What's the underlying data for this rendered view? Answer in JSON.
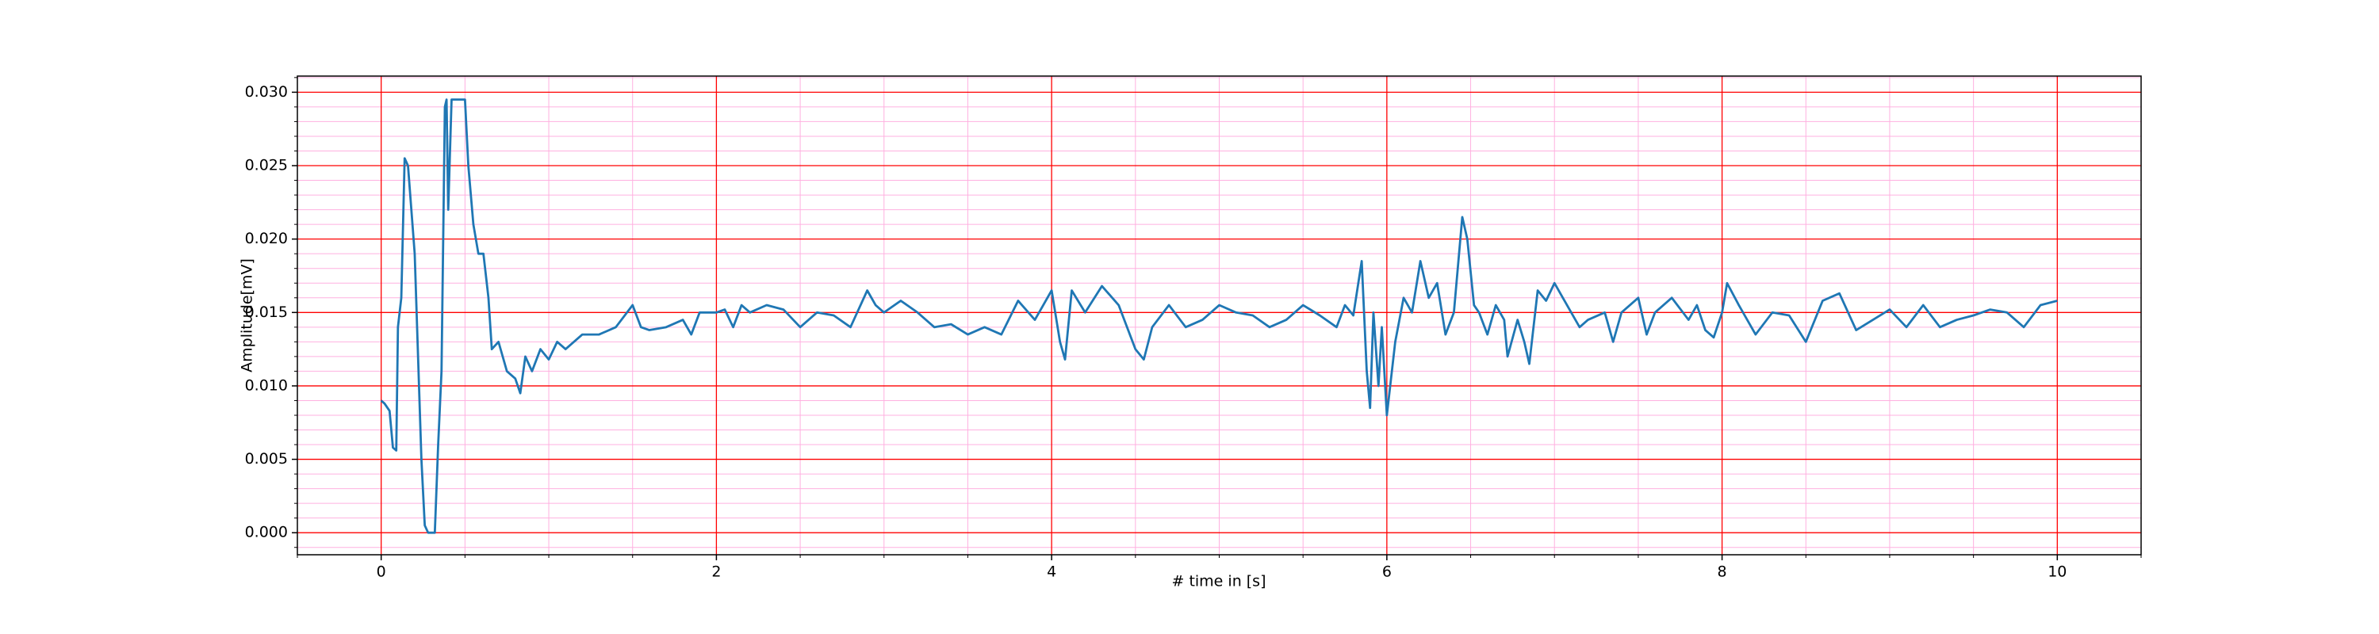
{
  "chart_data": {
    "type": "line",
    "xlabel": "# time in [s]",
    "ylabel": "Amplitude[mV]",
    "color": "#1f77b4",
    "x": [
      0,
      0.02,
      0.05,
      0.07,
      0.09,
      0.1,
      0.12,
      0.14,
      0.16,
      0.18,
      0.2,
      0.22,
      0.24,
      0.26,
      0.28,
      0.32,
      0.34,
      0.36,
      0.38,
      0.39,
      0.4,
      0.42,
      0.5,
      0.52,
      0.55,
      0.58,
      0.61,
      0.64,
      0.66,
      0.7,
      0.75,
      0.8,
      0.83,
      0.86,
      0.9,
      0.95,
      1.0,
      1.05,
      1.1,
      1.2,
      1.3,
      1.4,
      1.5,
      1.55,
      1.6,
      1.7,
      1.8,
      1.85,
      1.9,
      2.0,
      2.05,
      2.1,
      2.15,
      2.2,
      2.3,
      2.4,
      2.5,
      2.6,
      2.7,
      2.8,
      2.9,
      2.95,
      3.0,
      3.1,
      3.2,
      3.3,
      3.4,
      3.5,
      3.6,
      3.7,
      3.8,
      3.9,
      3.95,
      4.0,
      4.05,
      4.08,
      4.12,
      4.2,
      4.3,
      4.4,
      4.5,
      4.55,
      4.6,
      4.7,
      4.8,
      4.9,
      5.0,
      5.1,
      5.2,
      5.3,
      5.4,
      5.5,
      5.6,
      5.7,
      5.75,
      5.8,
      5.85,
      5.88,
      5.9,
      5.92,
      5.95,
      5.97,
      6.0,
      6.02,
      6.05,
      6.1,
      6.15,
      6.2,
      6.25,
      6.3,
      6.35,
      6.4,
      6.45,
      6.48,
      6.52,
      6.55,
      6.6,
      6.65,
      6.7,
      6.72,
      6.78,
      6.82,
      6.85,
      6.9,
      6.95,
      7.0,
      7.05,
      7.1,
      7.15,
      7.2,
      7.3,
      7.35,
      7.4,
      7.5,
      7.55,
      7.6,
      7.7,
      7.8,
      7.85,
      7.9,
      7.95,
      8.0,
      8.03,
      8.1,
      8.2,
      8.3,
      8.4,
      8.5,
      8.6,
      8.7,
      8.8,
      8.9,
      9.0,
      9.1,
      9.2,
      9.3,
      9.4,
      9.5,
      9.6,
      9.7,
      9.8,
      9.9,
      10.0
    ],
    "values": [
      0.009,
      0.0088,
      0.0083,
      0.0058,
      0.0056,
      0.014,
      0.016,
      0.0255,
      0.025,
      0.022,
      0.019,
      0.012,
      0.005,
      0.0005,
      0,
      0,
      0.006,
      0.011,
      0.029,
      0.0295,
      0.022,
      0.0295,
      0.0295,
      0.025,
      0.021,
      0.019,
      0.019,
      0.016,
      0.0125,
      0.013,
      0.011,
      0.0105,
      0.0095,
      0.012,
      0.011,
      0.0125,
      0.0118,
      0.013,
      0.0125,
      0.0135,
      0.0135,
      0.014,
      0.0155,
      0.014,
      0.0138,
      0.014,
      0.0145,
      0.0135,
      0.015,
      0.015,
      0.0152,
      0.014,
      0.0155,
      0.015,
      0.0155,
      0.0152,
      0.014,
      0.015,
      0.0148,
      0.014,
      0.0165,
      0.0155,
      0.015,
      0.0158,
      0.015,
      0.014,
      0.0142,
      0.0135,
      0.014,
      0.0135,
      0.0158,
      0.0145,
      0.0155,
      0.0165,
      0.013,
      0.0118,
      0.0165,
      0.015,
      0.0168,
      0.0155,
      0.0125,
      0.0118,
      0.014,
      0.0155,
      0.014,
      0.0145,
      0.0155,
      0.015,
      0.0148,
      0.014,
      0.0145,
      0.0155,
      0.0148,
      0.014,
      0.0155,
      0.0148,
      0.0185,
      0.011,
      0.0085,
      0.015,
      0.01,
      0.014,
      0.008,
      0.01,
      0.013,
      0.016,
      0.015,
      0.0185,
      0.016,
      0.017,
      0.0135,
      0.015,
      0.0215,
      0.02,
      0.0155,
      0.015,
      0.0135,
      0.0155,
      0.0145,
      0.012,
      0.0145,
      0.013,
      0.0115,
      0.0165,
      0.0158,
      0.017,
      0.016,
      0.015,
      0.014,
      0.0145,
      0.015,
      0.013,
      0.015,
      0.016,
      0.0135,
      0.015,
      0.016,
      0.0145,
      0.0155,
      0.0138,
      0.0133,
      0.015,
      0.017,
      0.0155,
      0.0135,
      0.015,
      0.0148,
      0.013,
      0.0158,
      0.0163,
      0.0138,
      0.0145,
      0.0152,
      0.014,
      0.0155,
      0.014,
      0.0145,
      0.0148,
      0.0152,
      0.015,
      0.014,
      0.0155,
      0.0158
    ],
    "xlim": [
      -0.5,
      10.5
    ],
    "xticks": [
      0,
      2,
      4,
      6,
      8,
      10
    ],
    "ylim": [
      -0.0015,
      0.0311
    ],
    "yticks": [
      {
        "value": 0,
        "label": "0.000"
      },
      {
        "value": 0.005,
        "label": "0.005"
      },
      {
        "value": 0.01,
        "label": "0.010"
      },
      {
        "value": 0.015,
        "label": "0.015"
      },
      {
        "value": 0.02,
        "label": "0.020"
      },
      {
        "value": 0.025,
        "label": "0.025"
      },
      {
        "value": 0.03,
        "label": "0.030"
      }
    ],
    "grid": true,
    "grid_color": "#ff0000",
    "minor_grid_color": "#ffb0e0",
    "xminor": [
      -0.5,
      0.5,
      1,
      1.5,
      2.5,
      3,
      3.5,
      4.5,
      5,
      5.5,
      6.5,
      7,
      7.5,
      8.5,
      9,
      9.5,
      10.5
    ],
    "yminor": [
      -0.001,
      0.001,
      0.002,
      0.003,
      0.004,
      0.006,
      0.007,
      0.008,
      0.009,
      0.011,
      0.012,
      0.013,
      0.014,
      0.016,
      0.017,
      0.018,
      0.019,
      0.021,
      0.022,
      0.023,
      0.024,
      0.026,
      0.027,
      0.028,
      0.029,
      0.031
    ]
  }
}
